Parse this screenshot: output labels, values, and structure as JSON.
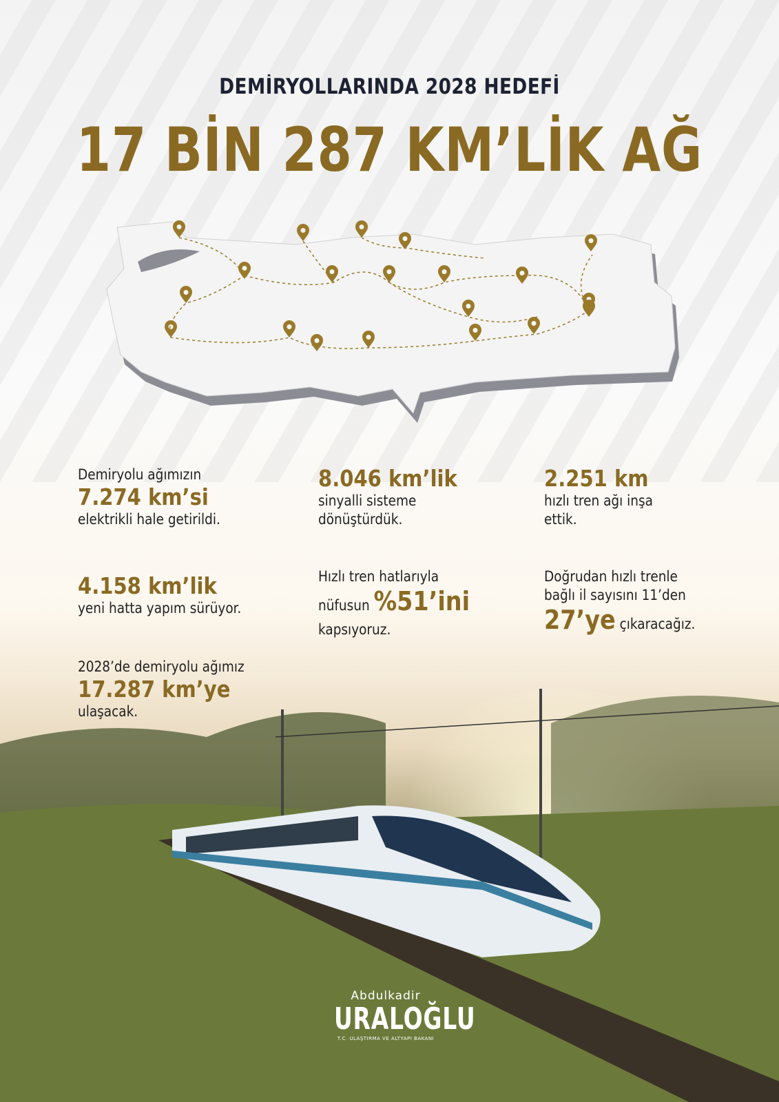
{
  "header": {
    "subtitle": "DEMİRYOLLARINDA 2028 HEDEFİ",
    "title": "17 BİN 287 KM’LİK AĞ"
  },
  "colors": {
    "gold": "#8a6a23",
    "navy": "#1d2233"
  },
  "map": {
    "pin_icon": "location-pin-icon",
    "pin_count": 20
  },
  "stats": [
    {
      "pre": "Demiryolu ağımızın",
      "big": "7.274 km’si",
      "post": "elektrikli hale getirildi."
    },
    {
      "big": "8.046 km’lik",
      "post1": "sinyalli sisteme",
      "post2": "dönüştürdük."
    },
    {
      "big": "2.251 km",
      "post1": "hızlı tren ağı inşa",
      "post2": "ettik."
    },
    {
      "big": "4.158 km’lik",
      "post": "yeni hatta yapım sürüyor."
    },
    {
      "line1": "Hızlı tren hatlarıyla",
      "line2pre": "nüfusun ",
      "line2big": "%51’ini",
      "line3": "kapsıyoruz."
    },
    {
      "line1": "Doğrudan hızlı trenle",
      "line2": "bağlı il sayısını 11’den",
      "line3big": "27’ye",
      "line3post": " çıkaracağız."
    },
    {
      "pre": "2028’de demiryolu ağımız",
      "big": "17.287 km’ye",
      "post": "ulaşacak."
    }
  ],
  "logo": {
    "first": "Abdulkadir",
    "last": "URALOĞLU",
    "role": "T.C. ULAŞTIRMA VE ALTYAPI BAKANI"
  }
}
